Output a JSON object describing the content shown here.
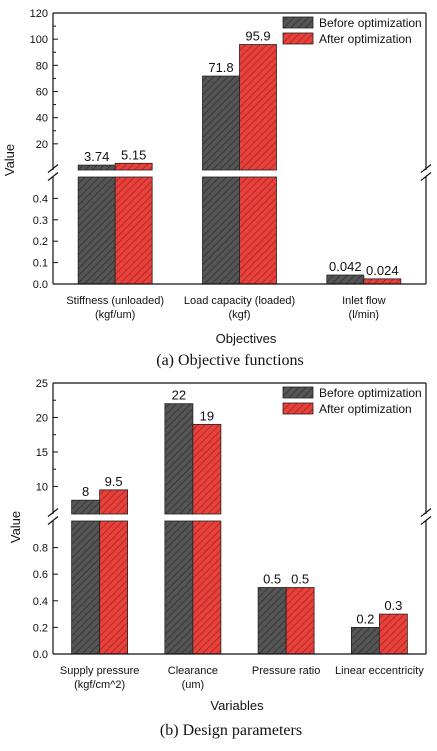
{
  "colors": {
    "before": "#555555",
    "after": "#e8413b",
    "axis": "#111111"
  },
  "chart_data": [
    {
      "type": "bar",
      "caption": "(a) Objective functions",
      "xlabel": "Objectives",
      "ylabel": "Value",
      "categories": [
        {
          "line1": "Stiffness (unloaded)",
          "line2": "(kgf/um)"
        },
        {
          "line1": "Load capacity (loaded)",
          "line2": "(kgf)"
        },
        {
          "line1": "Inlet flow",
          "line2": "(l/min)"
        }
      ],
      "series": [
        {
          "name": "Before optimization",
          "values": [
            3.74,
            71.8,
            0.042
          ],
          "labels": [
            "3.74",
            "71.8",
            "0.042"
          ]
        },
        {
          "name": "After optimization",
          "values": [
            5.15,
            95.9,
            0.024
          ],
          "labels": [
            "5.15",
            "95.9",
            "0.024"
          ]
        }
      ],
      "broken_axis": true,
      "lower_range": [
        0,
        0.5
      ],
      "upper_range": [
        0,
        120
      ],
      "lower_ticks": [
        "0.0",
        "0.1",
        "0.2",
        "0.3",
        "0.4"
      ],
      "upper_ticks": [
        "20",
        "40",
        "60",
        "80",
        "100",
        "120"
      ],
      "legend_position": "top-right"
    },
    {
      "type": "bar",
      "caption": "(b) Design parameters",
      "xlabel": "Variables",
      "ylabel": "Value",
      "categories": [
        {
          "line1": "Supply pressure",
          "line2": "(kgf/cm^2)"
        },
        {
          "line1": "Clearance",
          "line2": "(um)"
        },
        {
          "line1": "Pressure ratio",
          "line2": ""
        },
        {
          "line1": "Linear eccentricity",
          "line2": ""
        }
      ],
      "series": [
        {
          "name": "Before optimization",
          "values": [
            8,
            22,
            0.5,
            0.2
          ],
          "labels": [
            "8",
            "22",
            "0.5",
            "0.2"
          ]
        },
        {
          "name": "After optimization",
          "values": [
            9.5,
            19,
            0.5,
            0.3
          ],
          "labels": [
            "9.5",
            "19",
            "0.5",
            "0.3"
          ]
        }
      ],
      "broken_axis": true,
      "lower_range": [
        0,
        1.0
      ],
      "upper_range": [
        6,
        25
      ],
      "lower_ticks": [
        "0.0",
        "0.2",
        "0.4",
        "0.6",
        "0.8"
      ],
      "upper_ticks": [
        "10",
        "15",
        "20",
        "25"
      ],
      "legend_position": "top-right"
    }
  ]
}
